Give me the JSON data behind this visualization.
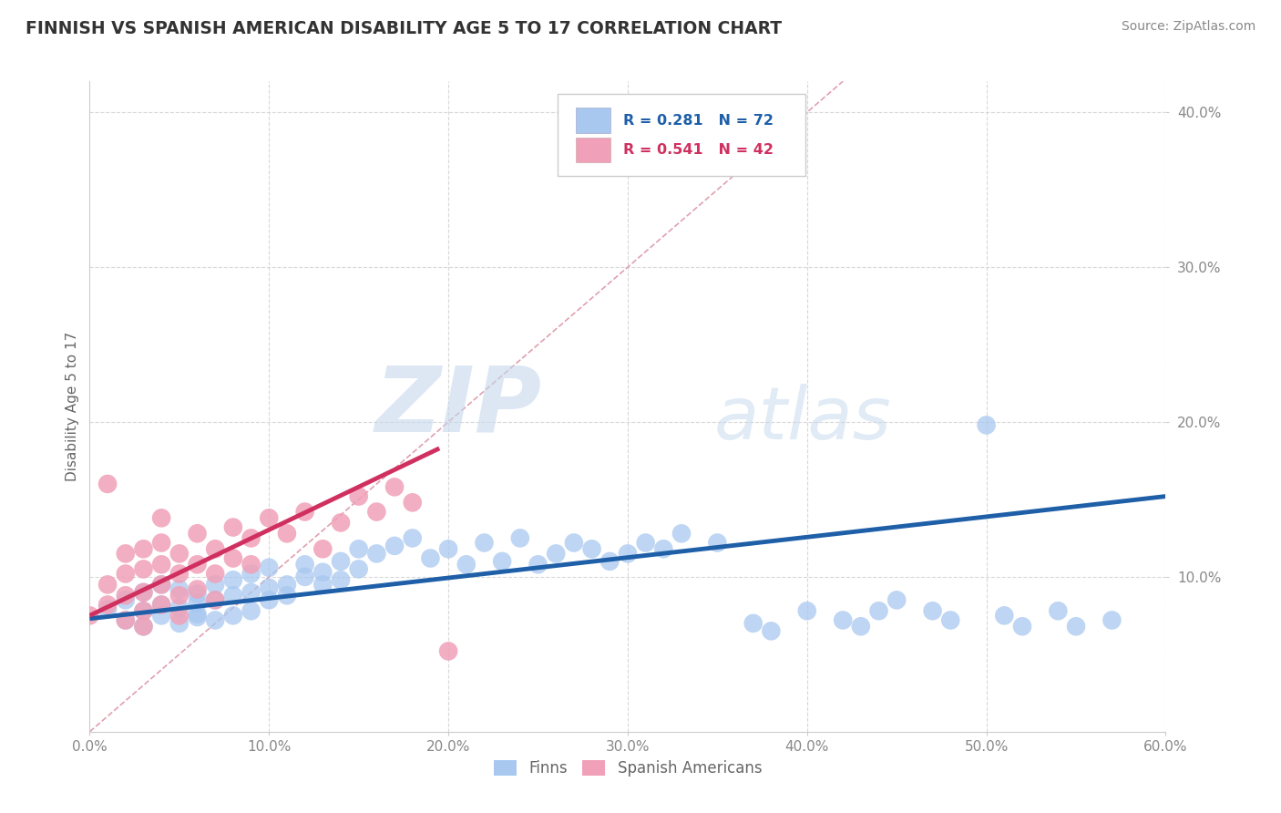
{
  "title": "FINNISH VS SPANISH AMERICAN DISABILITY AGE 5 TO 17 CORRELATION CHART",
  "source": "Source: ZipAtlas.com",
  "ylabel": "Disability Age 5 to 17",
  "xlim": [
    0.0,
    0.6
  ],
  "ylim": [
    0.0,
    0.42
  ],
  "xticks": [
    0.0,
    0.1,
    0.2,
    0.3,
    0.4,
    0.5,
    0.6
  ],
  "yticks": [
    0.1,
    0.2,
    0.3,
    0.4
  ],
  "xticklabels": [
    "0.0%",
    "10.0%",
    "20.0%",
    "30.0%",
    "40.0%",
    "50.0%",
    "60.0%"
  ],
  "yticklabels": [
    "10.0%",
    "20.0%",
    "30.0%",
    "40.0%"
  ],
  "legend_r_finn": "R = 0.281",
  "legend_n_finn": "N = 72",
  "legend_r_span": "R = 0.541",
  "legend_n_span": "N = 42",
  "finn_color": "#a8c8f0",
  "span_color": "#f0a0b8",
  "finn_line_color": "#1e5fa8",
  "span_line_color": "#d03060",
  "diagonal_color": "#e0a0b0",
  "watermark_zip": "ZIP",
  "watermark_atlas": "atlas",
  "finn_scatter_x": [
    0.01,
    0.02,
    0.02,
    0.03,
    0.03,
    0.03,
    0.04,
    0.04,
    0.04,
    0.05,
    0.05,
    0.05,
    0.06,
    0.06,
    0.06,
    0.06,
    0.07,
    0.07,
    0.07,
    0.08,
    0.08,
    0.08,
    0.09,
    0.09,
    0.09,
    0.1,
    0.1,
    0.1,
    0.11,
    0.11,
    0.12,
    0.12,
    0.13,
    0.13,
    0.14,
    0.14,
    0.15,
    0.15,
    0.16,
    0.17,
    0.18,
    0.19,
    0.2,
    0.21,
    0.22,
    0.23,
    0.24,
    0.25,
    0.26,
    0.27,
    0.28,
    0.29,
    0.3,
    0.31,
    0.32,
    0.33,
    0.35,
    0.37,
    0.38,
    0.4,
    0.42,
    0.43,
    0.44,
    0.45,
    0.47,
    0.48,
    0.5,
    0.51,
    0.52,
    0.54,
    0.55,
    0.57
  ],
  "finn_scatter_y": [
    0.079,
    0.072,
    0.085,
    0.068,
    0.078,
    0.09,
    0.075,
    0.082,
    0.095,
    0.07,
    0.08,
    0.092,
    0.074,
    0.083,
    0.089,
    0.076,
    0.085,
    0.095,
    0.072,
    0.088,
    0.098,
    0.075,
    0.09,
    0.102,
    0.078,
    0.093,
    0.085,
    0.106,
    0.095,
    0.088,
    0.1,
    0.108,
    0.095,
    0.103,
    0.11,
    0.098,
    0.118,
    0.105,
    0.115,
    0.12,
    0.125,
    0.112,
    0.118,
    0.108,
    0.122,
    0.11,
    0.125,
    0.108,
    0.115,
    0.122,
    0.118,
    0.11,
    0.115,
    0.122,
    0.118,
    0.128,
    0.122,
    0.07,
    0.065,
    0.078,
    0.072,
    0.068,
    0.078,
    0.085,
    0.078,
    0.072,
    0.198,
    0.075,
    0.068,
    0.078,
    0.068,
    0.072
  ],
  "span_scatter_x": [
    0.0,
    0.01,
    0.01,
    0.01,
    0.02,
    0.02,
    0.02,
    0.02,
    0.03,
    0.03,
    0.03,
    0.03,
    0.03,
    0.04,
    0.04,
    0.04,
    0.04,
    0.04,
    0.05,
    0.05,
    0.05,
    0.05,
    0.06,
    0.06,
    0.06,
    0.07,
    0.07,
    0.07,
    0.08,
    0.08,
    0.09,
    0.09,
    0.1,
    0.11,
    0.12,
    0.13,
    0.14,
    0.15,
    0.16,
    0.17,
    0.18,
    0.2
  ],
  "span_scatter_y": [
    0.075,
    0.082,
    0.095,
    0.16,
    0.072,
    0.088,
    0.102,
    0.115,
    0.078,
    0.09,
    0.105,
    0.068,
    0.118,
    0.082,
    0.095,
    0.108,
    0.122,
    0.138,
    0.075,
    0.088,
    0.102,
    0.115,
    0.092,
    0.108,
    0.128,
    0.085,
    0.102,
    0.118,
    0.112,
    0.132,
    0.108,
    0.125,
    0.138,
    0.128,
    0.142,
    0.118,
    0.135,
    0.152,
    0.142,
    0.158,
    0.148,
    0.052
  ],
  "finn_line_x": [
    0.0,
    0.6
  ],
  "finn_line_y": [
    0.073,
    0.152
  ],
  "span_line_x": [
    0.0,
    0.195
  ],
  "span_line_y": [
    0.075,
    0.183
  ],
  "diag_line_x": [
    0.0,
    0.42
  ],
  "diag_line_y": [
    0.0,
    0.42
  ],
  "background_color": "#ffffff",
  "grid_color": "#d8d8d8",
  "title_color": "#333333",
  "axis_label_color": "#666666",
  "tick_color": "#888888",
  "source_color": "#888888",
  "legend_text_color_finn": "#1e5fa8",
  "legend_text_color_span": "#d03060"
}
